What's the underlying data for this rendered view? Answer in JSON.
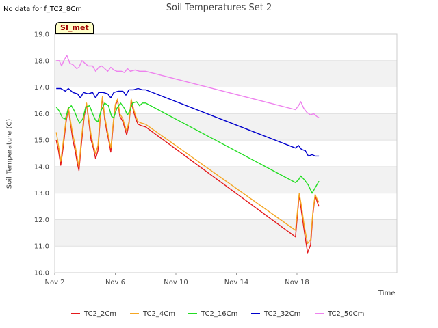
{
  "header": {
    "no_data_text": "No data for f_TC2_8Cm",
    "site_badge": "SI_met"
  },
  "chart_data": {
    "type": "line",
    "title": "Soil Temperatures Set 2",
    "xlabel": "Time",
    "ylabel": "Soil Temperature (C)",
    "x_units": "days since Nov 2",
    "xlim": [
      0,
      22.6
    ],
    "ylim": [
      10.0,
      19.0
    ],
    "grid": true,
    "x_ticks": [
      {
        "x": 0,
        "label": "Nov 2"
      },
      {
        "x": 4,
        "label": "Nov 6"
      },
      {
        "x": 8,
        "label": "Nov 10"
      },
      {
        "x": 12,
        "label": "Nov 14"
      },
      {
        "x": 16,
        "label": "Nov 18"
      }
    ],
    "y_ticks": [
      {
        "y": 10.0,
        "label": "10.0"
      },
      {
        "y": 11.0,
        "label": "11.0"
      },
      {
        "y": 12.0,
        "label": "12.0"
      },
      {
        "y": 13.0,
        "label": "13.0"
      },
      {
        "y": 14.0,
        "label": "14.0"
      },
      {
        "y": 15.0,
        "label": "15.0"
      },
      {
        "y": 16.0,
        "label": "16.0"
      },
      {
        "y": 17.0,
        "label": "17.0"
      },
      {
        "y": 18.0,
        "label": "18.0"
      },
      {
        "y": 19.0,
        "label": "19.0"
      }
    ],
    "legend_position": "bottom",
    "series": [
      {
        "name": "TC2_2Cm",
        "color": "#e41a1c",
        "points": [
          [
            0.1,
            15.0
          ],
          [
            0.25,
            14.6
          ],
          [
            0.4,
            14.05
          ],
          [
            0.55,
            14.7
          ],
          [
            0.75,
            15.7
          ],
          [
            0.9,
            16.2
          ],
          [
            1.05,
            15.6
          ],
          [
            1.2,
            15.0
          ],
          [
            1.35,
            14.6
          ],
          [
            1.5,
            14.1
          ],
          [
            1.6,
            13.85
          ],
          [
            1.75,
            14.8
          ],
          [
            1.95,
            15.9
          ],
          [
            2.1,
            16.35
          ],
          [
            2.25,
            15.7
          ],
          [
            2.4,
            15.0
          ],
          [
            2.55,
            14.7
          ],
          [
            2.7,
            14.3
          ],
          [
            2.85,
            14.6
          ],
          [
            3.0,
            15.8
          ],
          [
            3.15,
            16.6
          ],
          [
            3.3,
            15.8
          ],
          [
            3.45,
            15.3
          ],
          [
            3.6,
            14.9
          ],
          [
            3.7,
            14.55
          ],
          [
            3.85,
            15.5
          ],
          [
            4.0,
            16.3
          ],
          [
            4.15,
            16.5
          ],
          [
            4.3,
            15.9
          ],
          [
            4.5,
            15.7
          ],
          [
            4.6,
            15.5
          ],
          [
            4.75,
            15.2
          ],
          [
            4.9,
            15.6
          ],
          [
            5.05,
            16.5
          ],
          [
            5.2,
            16.1
          ],
          [
            5.35,
            15.8
          ],
          [
            5.5,
            15.6
          ],
          [
            5.7,
            15.55
          ],
          [
            6.0,
            15.5
          ],
          [
            15.9,
            11.35
          ],
          [
            16.15,
            12.95
          ],
          [
            16.3,
            12.3
          ],
          [
            16.5,
            11.5
          ],
          [
            16.7,
            10.75
          ],
          [
            16.9,
            11.05
          ],
          [
            17.05,
            12.2
          ],
          [
            17.2,
            12.9
          ],
          [
            17.35,
            12.65
          ],
          [
            17.45,
            12.5
          ]
        ]
      },
      {
        "name": "TC2_4Cm",
        "color": "#f5a623",
        "points": [
          [
            0.1,
            15.3
          ],
          [
            0.25,
            14.8
          ],
          [
            0.4,
            14.2
          ],
          [
            0.55,
            14.9
          ],
          [
            0.75,
            15.8
          ],
          [
            0.9,
            16.25
          ],
          [
            1.05,
            15.7
          ],
          [
            1.2,
            15.2
          ],
          [
            1.35,
            14.8
          ],
          [
            1.5,
            14.3
          ],
          [
            1.6,
            14.0
          ],
          [
            1.75,
            15.0
          ],
          [
            1.95,
            16.0
          ],
          [
            2.1,
            16.4
          ],
          [
            2.25,
            15.8
          ],
          [
            2.4,
            15.2
          ],
          [
            2.55,
            14.8
          ],
          [
            2.7,
            14.5
          ],
          [
            2.85,
            14.8
          ],
          [
            3.0,
            15.9
          ],
          [
            3.15,
            16.65
          ],
          [
            3.3,
            15.9
          ],
          [
            3.45,
            15.45
          ],
          [
            3.6,
            15.0
          ],
          [
            3.7,
            14.7
          ],
          [
            3.85,
            15.6
          ],
          [
            4.0,
            16.35
          ],
          [
            4.15,
            16.55
          ],
          [
            4.3,
            16.0
          ],
          [
            4.5,
            15.8
          ],
          [
            4.6,
            15.6
          ],
          [
            4.75,
            15.35
          ],
          [
            4.9,
            15.7
          ],
          [
            5.05,
            16.55
          ],
          [
            5.2,
            16.2
          ],
          [
            5.35,
            15.9
          ],
          [
            5.5,
            15.7
          ],
          [
            5.7,
            15.65
          ],
          [
            6.0,
            15.6
          ],
          [
            15.9,
            11.6
          ],
          [
            16.15,
            13.0
          ],
          [
            16.3,
            12.5
          ],
          [
            16.5,
            11.7
          ],
          [
            16.7,
            11.1
          ],
          [
            16.9,
            11.25
          ],
          [
            17.05,
            12.3
          ],
          [
            17.2,
            12.95
          ],
          [
            17.35,
            12.75
          ],
          [
            17.45,
            12.65
          ]
        ]
      },
      {
        "name": "TC2_16Cm",
        "color": "#22dd22",
        "points": [
          [
            0.1,
            16.25
          ],
          [
            0.3,
            16.1
          ],
          [
            0.5,
            15.85
          ],
          [
            0.7,
            15.8
          ],
          [
            0.9,
            16.2
          ],
          [
            1.1,
            16.3
          ],
          [
            1.3,
            16.1
          ],
          [
            1.5,
            15.8
          ],
          [
            1.65,
            15.65
          ],
          [
            1.85,
            15.8
          ],
          [
            2.05,
            16.25
          ],
          [
            2.3,
            16.3
          ],
          [
            2.5,
            16.0
          ],
          [
            2.7,
            15.75
          ],
          [
            2.85,
            15.7
          ],
          [
            3.05,
            16.1
          ],
          [
            3.3,
            16.4
          ],
          [
            3.55,
            16.3
          ],
          [
            3.75,
            15.9
          ],
          [
            3.9,
            15.85
          ],
          [
            4.1,
            16.2
          ],
          [
            4.35,
            16.4
          ],
          [
            4.6,
            16.2
          ],
          [
            4.8,
            15.95
          ],
          [
            4.95,
            16.1
          ],
          [
            5.15,
            16.4
          ],
          [
            5.4,
            16.45
          ],
          [
            5.6,
            16.3
          ],
          [
            5.8,
            16.4
          ],
          [
            6.0,
            16.4
          ],
          [
            15.9,
            13.4
          ],
          [
            16.1,
            13.5
          ],
          [
            16.25,
            13.65
          ],
          [
            16.5,
            13.5
          ],
          [
            16.75,
            13.3
          ],
          [
            17.0,
            13.0
          ],
          [
            17.2,
            13.2
          ],
          [
            17.45,
            13.45
          ]
        ]
      },
      {
        "name": "TC2_32Cm",
        "color": "#0000cc",
        "points": [
          [
            0.1,
            16.95
          ],
          [
            0.4,
            16.95
          ],
          [
            0.7,
            16.85
          ],
          [
            0.9,
            16.95
          ],
          [
            1.2,
            16.8
          ],
          [
            1.5,
            16.75
          ],
          [
            1.7,
            16.6
          ],
          [
            1.9,
            16.8
          ],
          [
            2.2,
            16.75
          ],
          [
            2.5,
            16.8
          ],
          [
            2.7,
            16.6
          ],
          [
            2.9,
            16.8
          ],
          [
            3.2,
            16.8
          ],
          [
            3.5,
            16.75
          ],
          [
            3.7,
            16.6
          ],
          [
            3.9,
            16.8
          ],
          [
            4.2,
            16.85
          ],
          [
            4.5,
            16.85
          ],
          [
            4.7,
            16.7
          ],
          [
            4.9,
            16.9
          ],
          [
            5.2,
            16.9
          ],
          [
            5.5,
            16.95
          ],
          [
            5.8,
            16.9
          ],
          [
            6.0,
            16.9
          ],
          [
            15.9,
            14.7
          ],
          [
            16.1,
            14.8
          ],
          [
            16.3,
            14.65
          ],
          [
            16.55,
            14.6
          ],
          [
            16.75,
            14.4
          ],
          [
            17.0,
            14.45
          ],
          [
            17.2,
            14.4
          ],
          [
            17.45,
            14.4
          ]
        ]
      },
      {
        "name": "TC2_50Cm",
        "color": "#ee82ee",
        "points": [
          [
            0.1,
            18.0
          ],
          [
            0.3,
            18.0
          ],
          [
            0.45,
            17.8
          ],
          [
            0.6,
            18.0
          ],
          [
            0.8,
            18.2
          ],
          [
            1.0,
            17.9
          ],
          [
            1.2,
            17.85
          ],
          [
            1.45,
            17.7
          ],
          [
            1.6,
            17.75
          ],
          [
            1.8,
            18.0
          ],
          [
            2.0,
            17.9
          ],
          [
            2.2,
            17.8
          ],
          [
            2.5,
            17.8
          ],
          [
            2.7,
            17.6
          ],
          [
            2.9,
            17.75
          ],
          [
            3.1,
            17.8
          ],
          [
            3.3,
            17.7
          ],
          [
            3.5,
            17.6
          ],
          [
            3.7,
            17.75
          ],
          [
            3.9,
            17.65
          ],
          [
            4.1,
            17.6
          ],
          [
            4.4,
            17.6
          ],
          [
            4.6,
            17.55
          ],
          [
            4.8,
            17.7
          ],
          [
            5.0,
            17.6
          ],
          [
            5.3,
            17.65
          ],
          [
            5.6,
            17.6
          ],
          [
            6.0,
            17.6
          ],
          [
            15.9,
            16.15
          ],
          [
            16.1,
            16.3
          ],
          [
            16.25,
            16.45
          ],
          [
            16.45,
            16.2
          ],
          [
            16.65,
            16.05
          ],
          [
            16.9,
            15.95
          ],
          [
            17.1,
            16.0
          ],
          [
            17.3,
            15.9
          ],
          [
            17.45,
            15.85
          ]
        ]
      }
    ]
  }
}
